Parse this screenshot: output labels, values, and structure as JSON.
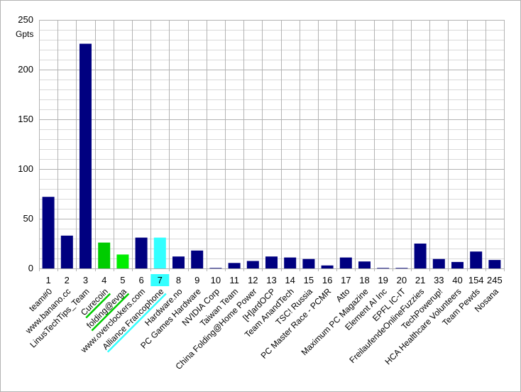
{
  "chart_data": {
    "type": "bar",
    "ylabel": "Gpts",
    "ylim": [
      0,
      250
    ],
    "yticks": [
      0,
      50,
      100,
      150,
      200,
      250
    ],
    "grid": true,
    "categories": [
      {
        "rank": "1",
        "team": "team#0",
        "value": 72,
        "color": "#000080"
      },
      {
        "rank": "2",
        "team": "www.banano.cc",
        "value": 33,
        "color": "#000080"
      },
      {
        "rank": "3",
        "team": "LinusTechTips_Team",
        "value": 226,
        "color": "#000080"
      },
      {
        "rank": "4",
        "team": "Curecoin",
        "value": 26,
        "color": "#00cc00",
        "underline": "#00cc00"
      },
      {
        "rank": "5",
        "team": "folding@evga",
        "value": 14,
        "color": "#00ee00",
        "underline": "#00cc00"
      },
      {
        "rank": "6",
        "team": "www.overclockers.com",
        "value": 31,
        "color": "#000080"
      },
      {
        "rank": "7",
        "team": "Alliance Francophone",
        "value": 31,
        "color": "#33ffff",
        "underline": "#33ffff",
        "rank_highlight": "#33ffff"
      },
      {
        "rank": "8",
        "team": "Hardware.no",
        "value": 12,
        "color": "#000080"
      },
      {
        "rank": "9",
        "team": "PC Games Hardware",
        "value": 18,
        "color": "#000080"
      },
      {
        "rank": "10",
        "team": "NVIDIA Corp",
        "value": 0.5,
        "color": "#000080"
      },
      {
        "rank": "11",
        "team": "Taiwan Team",
        "value": 5.5,
        "color": "#000080"
      },
      {
        "rank": "12",
        "team": "China Folding@Home Power",
        "value": 7.5,
        "color": "#000080"
      },
      {
        "rank": "13",
        "team": "[H]ardOCP",
        "value": 12,
        "color": "#000080"
      },
      {
        "rank": "14",
        "team": "Team AnandTech",
        "value": 11,
        "color": "#000080"
      },
      {
        "rank": "15",
        "team": "TSC! Russia",
        "value": 9.5,
        "color": "#000080"
      },
      {
        "rank": "16",
        "team": "PC Master Race - PCMR",
        "value": 3,
        "color": "#000080"
      },
      {
        "rank": "17",
        "team": "Atto",
        "value": 11,
        "color": "#000080"
      },
      {
        "rank": "18",
        "team": "Maximum PC Magazine",
        "value": 7,
        "color": "#000080"
      },
      {
        "rank": "19",
        "team": "Element AI Inc",
        "value": 0.5,
        "color": "#000080"
      },
      {
        "rank": "20",
        "team": "EPFL IC-IT",
        "value": 0.5,
        "color": "#000080"
      },
      {
        "rank": "21",
        "team": "FreilaufendeOnlineFuzzies",
        "value": 25,
        "color": "#000080"
      },
      {
        "rank": "33",
        "team": "TechPowerup!",
        "value": 9.5,
        "color": "#000080"
      },
      {
        "rank": "40",
        "team": "HCA Healthcare Volunteers",
        "value": 6.5,
        "color": "#000080"
      },
      {
        "rank": "154",
        "team": "Team Pewds",
        "value": 17,
        "color": "#000080"
      },
      {
        "rank": "245",
        "team": "Nosana",
        "value": 8.5,
        "color": "#000080"
      }
    ]
  }
}
